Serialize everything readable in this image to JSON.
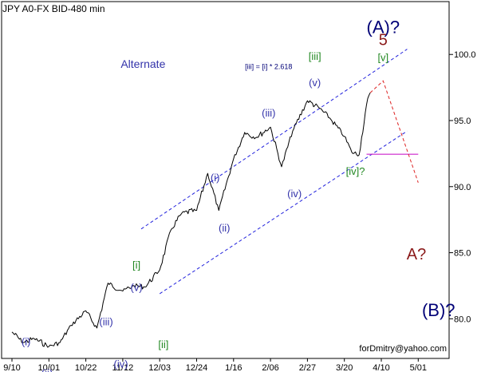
{
  "chart_data": {
    "type": "line",
    "title": "JPY A0-FX BID-480 min",
    "xlabel": "",
    "ylabel": "",
    "ylim": [
      77.0,
      104.0
    ],
    "y_ticks": [
      {
        "v": 100,
        "label": "100.0"
      },
      {
        "v": 95,
        "label": "95.0"
      },
      {
        "v": 90,
        "label": "90.0"
      },
      {
        "v": 85,
        "label": "85.0"
      },
      {
        "v": 80,
        "label": "80.0"
      }
    ],
    "x_ticks": [
      "9/10",
      "10/01",
      "10/22",
      "11/12",
      "12/03",
      "12/24",
      "1/16",
      "2/06",
      "2/27",
      "3/20",
      "4/10",
      "5/01"
    ],
    "series": [
      {
        "name": "",
        "x": [
          0.0,
          0.3,
          0.6,
          1.0,
          1.3,
          1.6,
          2.0,
          2.3,
          2.6,
          3.0,
          3.3,
          3.6,
          4.0,
          4.3,
          4.6,
          5.0,
          5.3,
          5.6,
          6.0,
          6.3,
          6.6,
          7.0,
          7.3,
          7.6,
          8.0,
          8.3,
          8.6,
          9.0,
          9.2,
          9.4,
          9.6,
          9.7
        ],
        "values": [
          79.0,
          78.2,
          78.5,
          77.9,
          78.2,
          79.5,
          80.6,
          79.3,
          82.7,
          82.1,
          82.5,
          82.4,
          83.7,
          86.7,
          88.0,
          88.2,
          91.0,
          88.2,
          92.1,
          94.1,
          93.7,
          94.5,
          91.5,
          94.2,
          96.5,
          96.0,
          95.2,
          93.8,
          92.6,
          92.4,
          96.2,
          97.1
        ]
      }
    ],
    "channel_upper": {
      "x": [
        3.5,
        10.7
      ],
      "values": [
        86.8,
        100.4
      ]
    },
    "channel_lower": {
      "x": [
        4.0,
        10.7
      ],
      "values": [
        81.9,
        94.2
      ]
    },
    "projection": {
      "x": [
        9.7,
        10.05,
        11.0
      ],
      "values": [
        97.1,
        98.0,
        90.3
      ]
    },
    "level_line": {
      "x": [
        9.6,
        11.0
      ],
      "values": [
        92.45,
        92.45
      ],
      "color": "#cc22cc"
    },
    "colors": {
      "line": "#000000",
      "channel": "#2222dd",
      "projection": "#dd2222",
      "blue_label": "#3333aa",
      "green_label": "#228822",
      "maroon_label": "#8b1a1a",
      "navy_label": "#000077"
    },
    "annotations": [
      {
        "text": "(A)?",
        "x": 10.05,
        "y": 101.6,
        "color": "navy_label",
        "size": 22
      },
      {
        "text": "5",
        "x": 10.05,
        "y": 100.7,
        "color": "maroon_label",
        "size": 20
      },
      {
        "text": "[v]",
        "x": 10.05,
        "y": 99.5,
        "color": "green_label",
        "size": 13
      },
      {
        "text": "[iii]",
        "x": 8.2,
        "y": 99.6,
        "color": "green_label",
        "size": 13
      },
      {
        "text": "(v)",
        "x": 8.2,
        "y": 97.6,
        "color": "blue_label",
        "size": 13
      },
      {
        "text": "(iii)",
        "x": 6.95,
        "y": 95.3,
        "color": "blue_label",
        "size": 13
      },
      {
        "text": "(i)",
        "x": 5.5,
        "y": 90.4,
        "color": "blue_label",
        "size": 13
      },
      {
        "text": "(ii)",
        "x": 5.75,
        "y": 86.6,
        "color": "blue_label",
        "size": 13
      },
      {
        "text": "(iv)",
        "x": 7.65,
        "y": 89.2,
        "color": "blue_label",
        "size": 13
      },
      {
        "text": "[iv]?",
        "x": 9.3,
        "y": 90.9,
        "color": "green_label",
        "size": 13
      },
      {
        "text": "[i]",
        "x": 3.37,
        "y": 83.8,
        "color": "green_label",
        "size": 13
      },
      {
        "text": "(v)",
        "x": 3.37,
        "y": 82.1,
        "color": "blue_label",
        "size": 13
      },
      {
        "text": "[ii]",
        "x": 4.1,
        "y": 77.8,
        "color": "green_label",
        "size": 13
      },
      {
        "text": "(iii)",
        "x": 2.55,
        "y": 79.5,
        "color": "blue_label",
        "size": 13
      },
      {
        "text": "(iv)",
        "x": 2.95,
        "y": 76.3,
        "color": "blue_label",
        "size": 13
      },
      {
        "text": "(i)",
        "x": 0.38,
        "y": 78.0,
        "color": "blue_label",
        "size": 13
      },
      {
        "text": "(ii)",
        "x": 0.95,
        "y": 75.6,
        "color": "blue_label",
        "size": 13
      },
      {
        "text": "4",
        "x": 0.2,
        "y": 74.9,
        "color": "maroon_label",
        "size": 20
      },
      {
        "text": "Alternate",
        "x": 3.55,
        "y": 99.0,
        "color": "blue_label",
        "size": 14
      },
      {
        "text": "[iii] = [i] * 2.618",
        "x": 6.95,
        "y": 98.9,
        "color": "navy_label",
        "size": 9
      },
      {
        "text": "A?",
        "x": 10.95,
        "y": 84.5,
        "color": "maroon_label",
        "size": 20
      },
      {
        "text": "(B)?",
        "x": 11.55,
        "y": 80.2,
        "color": "navy_label",
        "size": 22
      }
    ],
    "watermark": "forDmitry@yahoo.com"
  }
}
